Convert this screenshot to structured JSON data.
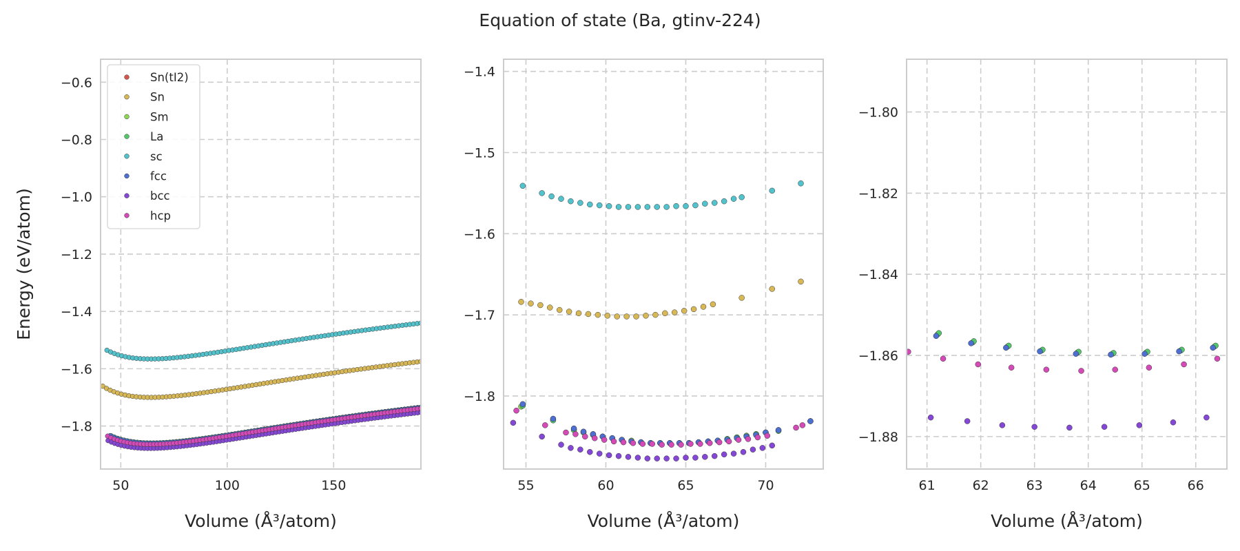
{
  "figure": {
    "title": "Equation of state (Ba, gtinv-224)",
    "colors": {
      "Sn(tI2)": "#d9544d",
      "Sn": "#d8b856",
      "Sm": "#8ed553",
      "La": "#52c76b",
      "sc": "#52c2cc",
      "fcc": "#4d6fd1",
      "bcc": "#8548d6",
      "hcp": "#d44bb8"
    }
  },
  "chart_data": [
    {
      "type": "scatter",
      "title": "",
      "xlabel": "Volume (Å³/atom)",
      "ylabel": "Energy (eV/atom)",
      "xlim": [
        40.5,
        191
      ],
      "ylim": [
        -1.95,
        -0.52
      ],
      "xticks": [
        50,
        100,
        150
      ],
      "xtick_labels": [
        "50",
        "100",
        "150"
      ],
      "yticks": [
        -1.8,
        -1.6,
        -1.4,
        -1.2,
        -1.0,
        -0.8,
        -0.6
      ],
      "ytick_labels": [
        "−1.8",
        "−1.6",
        "−1.4",
        "−1.2",
        "−1.0",
        "−0.8",
        "−0.6"
      ],
      "grid": true,
      "legend": {
        "placement": "upper-left",
        "entries": [
          "Sn(tI2)",
          "Sn",
          "Sm",
          "La",
          "sc",
          "fcc",
          "bcc",
          "hcp"
        ]
      },
      "series": [
        {
          "name": "sc",
          "curve": {
            "v0": 64.0,
            "e0": -1.566,
            "vmin": 43.5,
            "vmax": 191,
            "n": 86
          }
        },
        {
          "name": "Sn",
          "curve": {
            "v0": 64.0,
            "e0": -1.7,
            "vmin": 41.5,
            "vmax": 191,
            "n": 86
          }
        },
        {
          "name": "Sm",
          "curve": {
            "v0": 64.5,
            "e0": -1.86,
            "vmin": 45.5,
            "vmax": 191,
            "n": 96
          }
        },
        {
          "name": "La",
          "curve": {
            "v0": 64.5,
            "e0": -1.859,
            "vmin": 45.5,
            "vmax": 191,
            "n": 96
          }
        },
        {
          "name": "fcc",
          "curve": {
            "v0": 64.5,
            "e0": -1.86,
            "vmin": 45.0,
            "vmax": 191,
            "n": 96
          }
        },
        {
          "name": "bcc",
          "curve": {
            "v0": 63.5,
            "e0": -1.878,
            "vmin": 44.0,
            "vmax": 191,
            "n": 96
          }
        },
        {
          "name": "hcp",
          "curve": {
            "v0": 63.8,
            "e0": -1.864,
            "vmin": 43.8,
            "vmax": 191,
            "n": 96
          }
        }
      ]
    },
    {
      "type": "scatter",
      "title": "",
      "xlabel": "Volume (Å³/atom)",
      "ylabel": "",
      "xlim": [
        53.6,
        73.6
      ],
      "ylim": [
        -1.89,
        -1.385
      ],
      "xticks": [
        55,
        60,
        65,
        70
      ],
      "xtick_labels": [
        "55",
        "60",
        "65",
        "70"
      ],
      "yticks": [
        -1.8,
        -1.7,
        -1.6,
        -1.5,
        -1.4
      ],
      "ytick_labels": [
        "−1.8",
        "−1.7",
        "−1.6",
        "−1.5",
        "−1.4"
      ],
      "grid": true,
      "series": [
        {
          "name": "sc",
          "x": [
            54.8,
            56.0,
            56.6,
            57.2,
            57.8,
            58.4,
            59.0,
            59.6,
            60.2,
            60.8,
            61.4,
            62.0,
            62.6,
            63.2,
            63.8,
            64.4,
            65.0,
            65.6,
            66.2,
            66.8,
            67.4,
            68.0,
            68.5,
            70.4,
            72.2
          ],
          "y": [
            -1.541,
            -1.55,
            -1.554,
            -1.557,
            -1.56,
            -1.562,
            -1.564,
            -1.565,
            -1.566,
            -1.567,
            -1.567,
            -1.567,
            -1.567,
            -1.567,
            -1.567,
            -1.566,
            -1.566,
            -1.565,
            -1.563,
            -1.562,
            -1.56,
            -1.557,
            -1.555,
            -1.547,
            -1.538
          ]
        },
        {
          "name": "Sn",
          "x": [
            54.7,
            55.3,
            55.9,
            56.5,
            57.1,
            57.7,
            58.3,
            58.9,
            59.5,
            60.1,
            60.7,
            61.3,
            61.9,
            62.5,
            63.1,
            63.7,
            64.3,
            64.9,
            65.5,
            66.1,
            66.7,
            68.5,
            70.4,
            72.2
          ],
          "y": [
            -1.684,
            -1.686,
            -1.688,
            -1.691,
            -1.694,
            -1.696,
            -1.698,
            -1.699,
            -1.7,
            -1.701,
            -1.702,
            -1.702,
            -1.702,
            -1.701,
            -1.7,
            -1.698,
            -1.697,
            -1.695,
            -1.693,
            -1.69,
            -1.687,
            -1.679,
            -1.668,
            -1.659
          ]
        },
        {
          "name": "Sm",
          "x": [
            54.7,
            56.7,
            58.0,
            58.6,
            59.2,
            59.8,
            60.4,
            61.0,
            61.6,
            62.2,
            62.8,
            63.4,
            64.0,
            64.6,
            65.2,
            65.8,
            66.4,
            67.0,
            67.6,
            68.2,
            68.8,
            69.4,
            70.0,
            70.8,
            72.8
          ],
          "y": [
            -1.813,
            -1.829,
            -1.841,
            -1.844,
            -1.847,
            -1.85,
            -1.852,
            -1.854,
            -1.855,
            -1.857,
            -1.858,
            -1.858,
            -1.858,
            -1.858,
            -1.858,
            -1.857,
            -1.856,
            -1.855,
            -1.853,
            -1.851,
            -1.849,
            -1.847,
            -1.845,
            -1.842,
            -1.831
          ]
        },
        {
          "name": "La",
          "x": [
            54.8,
            56.7,
            58.0,
            58.6,
            59.2,
            59.8,
            60.4,
            61.0,
            61.6,
            62.2,
            62.8,
            63.4,
            64.0,
            64.6,
            65.2,
            65.8,
            66.4,
            67.0,
            67.6,
            68.2,
            68.8,
            69.4,
            70.0,
            70.8,
            72.8
          ],
          "y": [
            -1.812,
            -1.83,
            -1.842,
            -1.845,
            -1.848,
            -1.85,
            -1.852,
            -1.854,
            -1.856,
            -1.857,
            -1.858,
            -1.858,
            -1.858,
            -1.858,
            -1.858,
            -1.857,
            -1.856,
            -1.855,
            -1.853,
            -1.851,
            -1.849,
            -1.847,
            -1.845,
            -1.843,
            -1.831
          ]
        },
        {
          "name": "fcc",
          "x": [
            54.8,
            56.7,
            58.0,
            58.6,
            59.2,
            59.8,
            60.4,
            61.0,
            61.6,
            62.2,
            62.8,
            63.4,
            64.0,
            64.6,
            65.2,
            65.8,
            66.4,
            67.0,
            67.6,
            68.2,
            68.8,
            69.4,
            70.0,
            70.8,
            72.8
          ],
          "y": [
            -1.81,
            -1.828,
            -1.84,
            -1.844,
            -1.847,
            -1.85,
            -1.852,
            -1.854,
            -1.856,
            -1.857,
            -1.858,
            -1.858,
            -1.858,
            -1.858,
            -1.858,
            -1.857,
            -1.856,
            -1.855,
            -1.854,
            -1.852,
            -1.85,
            -1.848,
            -1.845,
            -1.842,
            -1.831
          ]
        },
        {
          "name": "bcc",
          "x": [
            54.2,
            56.0,
            57.2,
            57.8,
            58.4,
            59.0,
            59.6,
            60.2,
            60.8,
            61.4,
            62.0,
            62.6,
            63.2,
            63.8,
            64.4,
            65.0,
            65.6,
            66.2,
            66.8,
            67.4,
            68.0,
            68.6,
            69.2,
            69.8,
            70.4
          ],
          "y": [
            -1.833,
            -1.85,
            -1.86,
            -1.864,
            -1.866,
            -1.869,
            -1.871,
            -1.873,
            -1.874,
            -1.875,
            -1.876,
            -1.877,
            -1.877,
            -1.877,
            -1.877,
            -1.876,
            -1.876,
            -1.875,
            -1.874,
            -1.872,
            -1.871,
            -1.869,
            -1.866,
            -1.864,
            -1.861
          ]
        },
        {
          "name": "hcp",
          "x": [
            54.4,
            56.2,
            57.5,
            58.1,
            58.7,
            59.3,
            59.9,
            60.5,
            61.1,
            61.7,
            62.3,
            62.9,
            63.5,
            64.1,
            64.7,
            65.3,
            65.9,
            66.5,
            67.1,
            67.7,
            68.3,
            68.9,
            69.5,
            70.1,
            71.9,
            72.3
          ],
          "y": [
            -1.818,
            -1.836,
            -1.845,
            -1.847,
            -1.85,
            -1.852,
            -1.854,
            -1.856,
            -1.857,
            -1.858,
            -1.859,
            -1.859,
            -1.86,
            -1.86,
            -1.86,
            -1.859,
            -1.859,
            -1.858,
            -1.857,
            -1.856,
            -1.854,
            -1.853,
            -1.851,
            -1.849,
            -1.839,
            -1.836
          ]
        }
      ]
    },
    {
      "type": "scatter",
      "title": "",
      "xlabel": "Volume (Å³/atom)",
      "ylabel": "",
      "xlim": [
        60.62,
        66.58
      ],
      "ylim": [
        -1.888,
        -1.787
      ],
      "xticks": [
        61,
        62,
        63,
        64,
        65,
        66
      ],
      "xtick_labels": [
        "61",
        "62",
        "63",
        "64",
        "65",
        "66"
      ],
      "yticks": [
        -1.88,
        -1.86,
        -1.84,
        -1.82,
        -1.8
      ],
      "ytick_labels": [
        "−1.88",
        "−1.86",
        "−1.84",
        "−1.82",
        "−1.80"
      ],
      "grid": true,
      "series": [
        {
          "name": "Sm",
          "x": [
            61.2,
            61.85,
            62.5,
            63.13,
            63.8,
            64.45,
            65.08,
            65.72,
            66.35
          ],
          "y": [
            -1.8548,
            -1.8568,
            -1.8578,
            -1.8588,
            -1.8593,
            -1.8596,
            -1.8593,
            -1.8588,
            -1.8578
          ]
        },
        {
          "name": "La",
          "x": [
            61.22,
            61.87,
            62.52,
            63.15,
            63.82,
            64.47,
            65.1,
            65.74,
            66.37
          ],
          "y": [
            -1.8545,
            -1.8565,
            -1.8576,
            -1.8586,
            -1.8591,
            -1.8594,
            -1.8591,
            -1.8586,
            -1.8576
          ]
        },
        {
          "name": "fcc",
          "x": [
            61.17,
            61.82,
            62.47,
            63.1,
            63.77,
            64.42,
            65.05,
            65.69,
            66.32
          ],
          "y": [
            -1.8552,
            -1.857,
            -1.8581,
            -1.859,
            -1.8596,
            -1.8598,
            -1.8596,
            -1.859,
            -1.8581
          ]
        },
        {
          "name": "bcc",
          "x": [
            61.07,
            61.75,
            62.4,
            63.0,
            63.65,
            64.3,
            64.95,
            65.58,
            66.2
          ],
          "y": [
            -1.8753,
            -1.8762,
            -1.8772,
            -1.8776,
            -1.8778,
            -1.8776,
            -1.8772,
            -1.8765,
            -1.8753
          ]
        },
        {
          "name": "hcp",
          "x": [
            60.65,
            61.3,
            61.95,
            62.57,
            63.22,
            63.87,
            64.5,
            65.13,
            65.78,
            66.4
          ],
          "y": [
            -1.8591,
            -1.8608,
            -1.8622,
            -1.863,
            -1.8635,
            -1.8638,
            -1.8635,
            -1.863,
            -1.8622,
            -1.8608
          ]
        }
      ]
    }
  ]
}
